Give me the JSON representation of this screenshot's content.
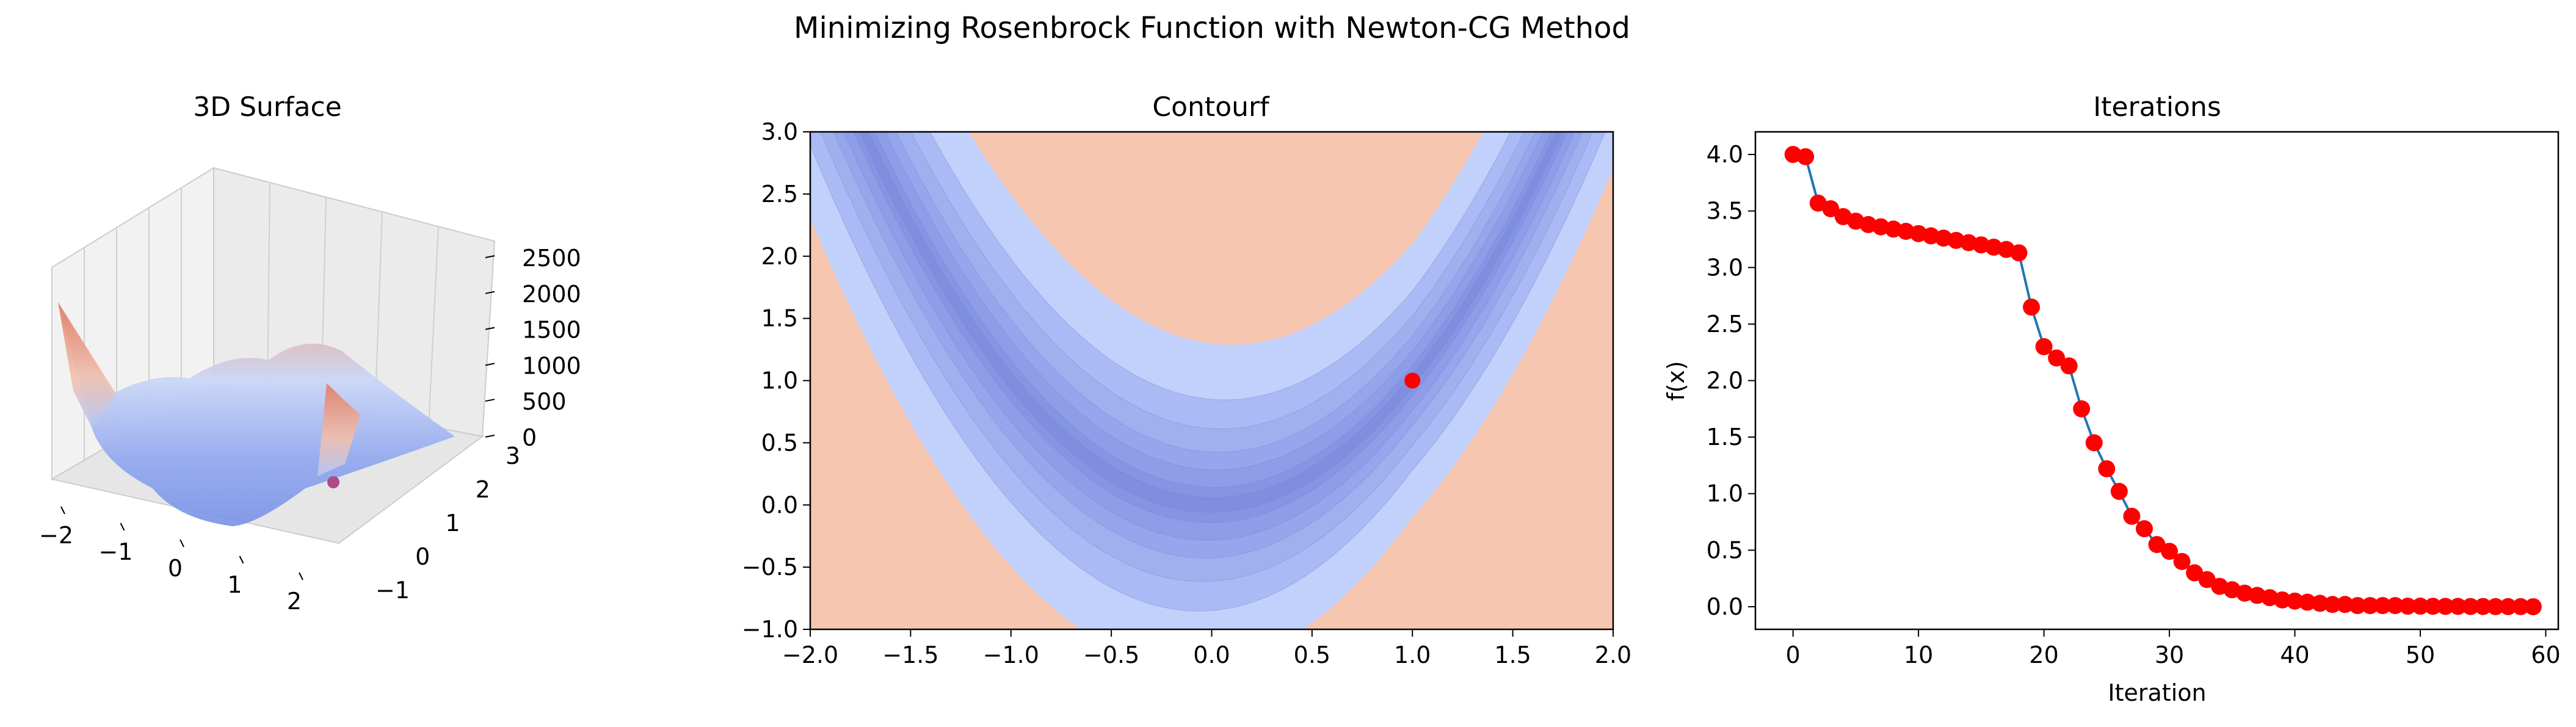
{
  "figure": {
    "title": "Minimizing Rosenbrock Function with Newton-CG Method"
  },
  "colors": {
    "marker": "#ff0000",
    "line": "#1f77b4",
    "contour_levels": [
      "#2d3ec4",
      "#5b6bd6",
      "#7b8ae0",
      "#a3b4f2",
      "#c2d1fb",
      "#f7c6b0",
      "#f29a7c"
    ],
    "surface_low": "#3b4cc0",
    "surface_high": "#d65244"
  },
  "chart_data": [
    {
      "type": "surface",
      "title": "3D Surface",
      "xlim": [
        -2,
        2
      ],
      "ylim": [
        -1,
        3
      ],
      "zlim": [
        0,
        2500
      ],
      "x_ticks": [
        "−2",
        "−1",
        "0",
        "1",
        "2"
      ],
      "y_ticks": [
        "−1",
        "0",
        "1",
        "2",
        "3"
      ],
      "z_ticks": [
        "0",
        "500",
        "1000",
        "1500",
        "2000",
        "2500"
      ],
      "colormap": "coolwarm",
      "minimum_point": {
        "x": 1,
        "y": 1,
        "z": 0
      }
    },
    {
      "type": "contour",
      "title": "Contourf",
      "xlim": [
        -2,
        2
      ],
      "ylim": [
        -1,
        3
      ],
      "x_ticks": [
        "−2.0",
        "−1.5",
        "−1.0",
        "−0.5",
        "0.0",
        "0.5",
        "1.0",
        "1.5",
        "2.0"
      ],
      "y_ticks": [
        "−1.0",
        "−0.5",
        "0.0",
        "0.5",
        "1.0",
        "1.5",
        "2.0",
        "2.5",
        "3.0"
      ],
      "colormap": "coolwarm",
      "minimum_point": {
        "x": 1.0,
        "y": 1.0
      }
    },
    {
      "type": "line",
      "title": "Iterations",
      "xlabel": "Iteration",
      "ylabel": "f(x)",
      "xlim": [
        -3,
        61
      ],
      "ylim": [
        -0.2,
        4.2
      ],
      "x_ticks": [
        "0",
        "10",
        "20",
        "30",
        "40",
        "50",
        "60"
      ],
      "y_ticks": [
        "0.0",
        "0.5",
        "1.0",
        "1.5",
        "2.0",
        "2.5",
        "3.0",
        "3.5",
        "4.0"
      ],
      "x": [
        0,
        1,
        2,
        3,
        4,
        5,
        6,
        7,
        8,
        9,
        10,
        11,
        12,
        13,
        14,
        15,
        16,
        17,
        18,
        19,
        20,
        21,
        22,
        23,
        24,
        25,
        26,
        27,
        28,
        29,
        30,
        31,
        32,
        33,
        34,
        35,
        36,
        37,
        38,
        39,
        40,
        41,
        42,
        43,
        44,
        45,
        46,
        47,
        48,
        49,
        50,
        51,
        52,
        53,
        54,
        55,
        56,
        57,
        58,
        59
      ],
      "y": [
        4.0,
        3.98,
        3.57,
        3.52,
        3.45,
        3.41,
        3.38,
        3.36,
        3.34,
        3.32,
        3.3,
        3.28,
        3.26,
        3.24,
        3.22,
        3.2,
        3.18,
        3.16,
        3.13,
        2.65,
        2.3,
        2.2,
        2.13,
        1.75,
        1.45,
        1.22,
        1.02,
        0.8,
        0.69,
        0.55,
        0.49,
        0.4,
        0.3,
        0.24,
        0.18,
        0.15,
        0.12,
        0.1,
        0.08,
        0.06,
        0.05,
        0.04,
        0.03,
        0.02,
        0.02,
        0.01,
        0.01,
        0.01,
        0.01,
        0.005,
        0.005,
        0.004,
        0.003,
        0.003,
        0.002,
        0.002,
        0.001,
        0.001,
        0.001,
        0.0
      ]
    }
  ]
}
